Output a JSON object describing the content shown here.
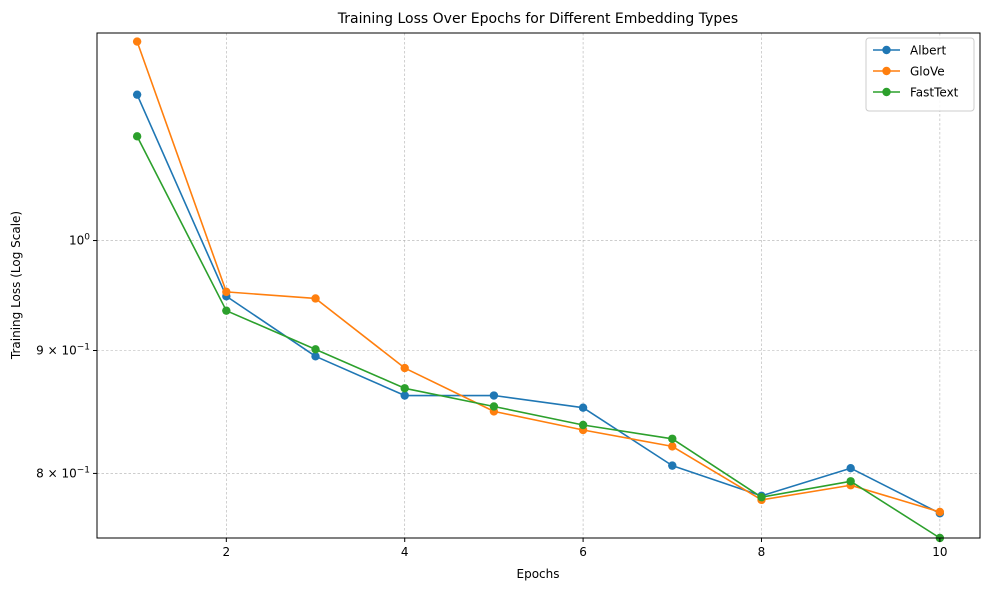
{
  "chart_data": {
    "type": "line",
    "title": "Training Loss Over Epochs for Different Embedding Types",
    "xlabel": "Epochs",
    "ylabel": "Training Loss (Log Scale)",
    "yscale": "log",
    "xlim": [
      0.55,
      10.45
    ],
    "ylim": [
      0.752,
      1.22
    ],
    "x_ticks": [
      2,
      4,
      6,
      8,
      10
    ],
    "x_tick_labels": [
      "2",
      "4",
      "6",
      "8",
      "10"
    ],
    "y_ticks": [
      {
        "value": 1.0,
        "base": "10",
        "exp": "0"
      },
      {
        "value": 0.9,
        "base": "9 × 10",
        "exp": "−1"
      },
      {
        "value": 0.8,
        "base": "8 × 10",
        "exp": "−1"
      }
    ],
    "grid": true,
    "legend_position": "top-right",
    "x": [
      1,
      2,
      3,
      4,
      5,
      6,
      7,
      8,
      9,
      10
    ],
    "series": [
      {
        "name": "Albert",
        "color": "#1f77b4",
        "values": [
          1.15,
          0.948,
          0.895,
          0.862,
          0.862,
          0.852,
          0.806,
          0.783,
          0.804,
          0.77
        ]
      },
      {
        "name": "GloVe",
        "color": "#ff7f0e",
        "values": [
          1.21,
          0.952,
          0.946,
          0.885,
          0.849,
          0.834,
          0.821,
          0.78,
          0.791,
          0.771
        ]
      },
      {
        "name": "FastText",
        "color": "#2ca02c",
        "values": [
          1.105,
          0.935,
          0.901,
          0.868,
          0.853,
          0.838,
          0.827,
          0.782,
          0.794,
          0.752
        ]
      }
    ]
  }
}
